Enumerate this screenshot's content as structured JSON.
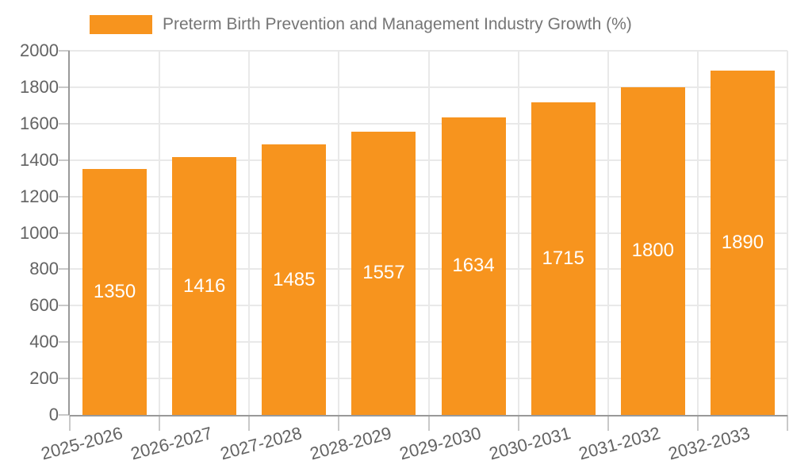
{
  "legend": {
    "title": "Preterm Birth Prevention and Management Industry Growth (%)"
  },
  "chart_data": {
    "type": "bar",
    "title": "Preterm Birth Prevention and Management Industry Growth (%)",
    "categories": [
      "2025-2026",
      "2026-2027",
      "2027-2028",
      "2028-2029",
      "2029-2030",
      "2030-2031",
      "2031-2032",
      "2032-2033"
    ],
    "series": [
      {
        "name": "Preterm Birth Prevention and Management Industry Growth (%)",
        "values": [
          1350,
          1416,
          1485,
          1557,
          1634,
          1715,
          1800,
          1890
        ]
      }
    ],
    "values": [
      1350,
      1416,
      1485,
      1557,
      1634,
      1715,
      1800,
      1890
    ],
    "value_labels": [
      "1350",
      "1416",
      "1485",
      "1557",
      "1634",
      "1715",
      "1800",
      "1890"
    ],
    "xlabel": "",
    "ylabel": "",
    "ylim": [
      0,
      2000
    ],
    "yticks": [
      0,
      200,
      400,
      600,
      800,
      1000,
      1200,
      1400,
      1600,
      1800,
      2000
    ],
    "grid": true,
    "legend_position": "top",
    "x_label_rotation_deg": -15
  },
  "colors": {
    "bar": "#F7941E",
    "bar_value_text": "#FFFFFF",
    "grid": "#E9E9E9",
    "tick": "#C9C9C9",
    "axis_line": "#999999",
    "axis_text": "#636363",
    "legend_text": "#757575",
    "background": "#FFFFFF"
  }
}
